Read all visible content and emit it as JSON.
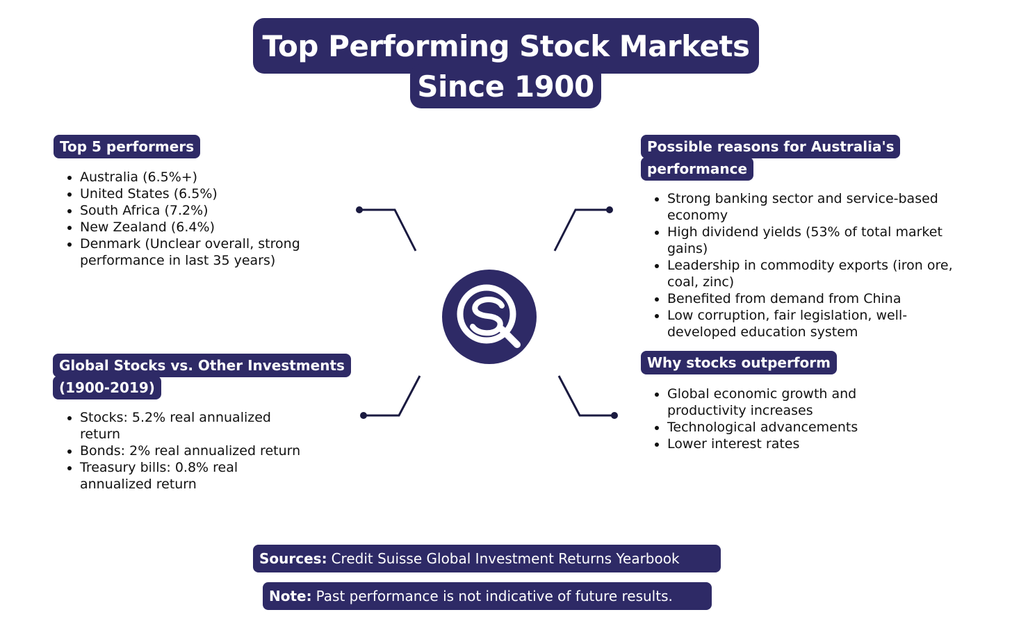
{
  "title": {
    "line1": "Top Performing Stock Markets",
    "line2": "Since 1900"
  },
  "top_performers": {
    "heading": "Top 5 performers",
    "items": [
      "Australia (6.5%+)",
      "United States (6.5%)",
      "South Africa (7.2%)",
      "New Zealand (6.4%)",
      "Denmark (Unclear overall, strong performance in last 35 years)"
    ]
  },
  "australia_reasons": {
    "heading_line1": "Possible reasons for Australia's",
    "heading_line2": "performance",
    "items": [
      "Strong banking sector and service-based economy",
      "High dividend yields (53% of total market gains)",
      "Leadership in commodity exports (iron ore, coal, zinc)",
      "Benefited from demand from China",
      "Low corruption, fair legislation, well-developed education system"
    ]
  },
  "global_vs_other": {
    "heading_line1": "Global Stocks vs. Other Investments",
    "heading_line2": "(1900-2019)",
    "items": [
      "Stocks: 5.2% real annualized return",
      "Bonds: 2% real annualized return",
      "Treasury bills: 0.8% real annualized return"
    ]
  },
  "why_outperform": {
    "heading": "Why stocks outperform",
    "items": [
      "Global economic growth and productivity increases",
      "Technological advancements",
      "Lower interest rates"
    ]
  },
  "center_logo": {
    "icon": "magnifier-logo-icon"
  },
  "footer": {
    "sources_label": "Sources:",
    "sources_text": "Credit Suisse Global Investment Returns Yearbook",
    "note_label": "Note:",
    "note_text": "Past performance is not indicative of future results."
  },
  "colors": {
    "navy": "#2e2a66",
    "text": "#111111",
    "background": "#ffffff"
  }
}
